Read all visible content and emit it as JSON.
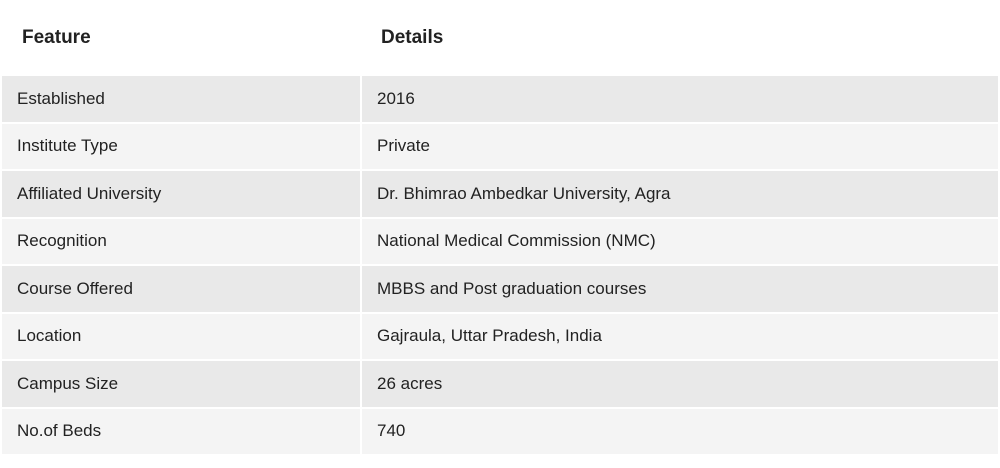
{
  "table": {
    "header": [
      "Feature",
      "Details"
    ],
    "rows": [
      [
        "Established",
        "2016"
      ],
      [
        "Institute Type",
        "Private"
      ],
      [
        "Affiliated University",
        "Dr. Bhimrao Ambedkar University, Agra"
      ],
      [
        "Recognition",
        "National Medical Commission (NMC)"
      ],
      [
        "Course Offered",
        "MBBS and Post graduation courses"
      ],
      [
        "Location",
        "Gajraula, Uttar Pradesh, India"
      ],
      [
        "Campus Size",
        "26 acres"
      ],
      [
        "No.of Beds",
        "740"
      ]
    ]
  }
}
